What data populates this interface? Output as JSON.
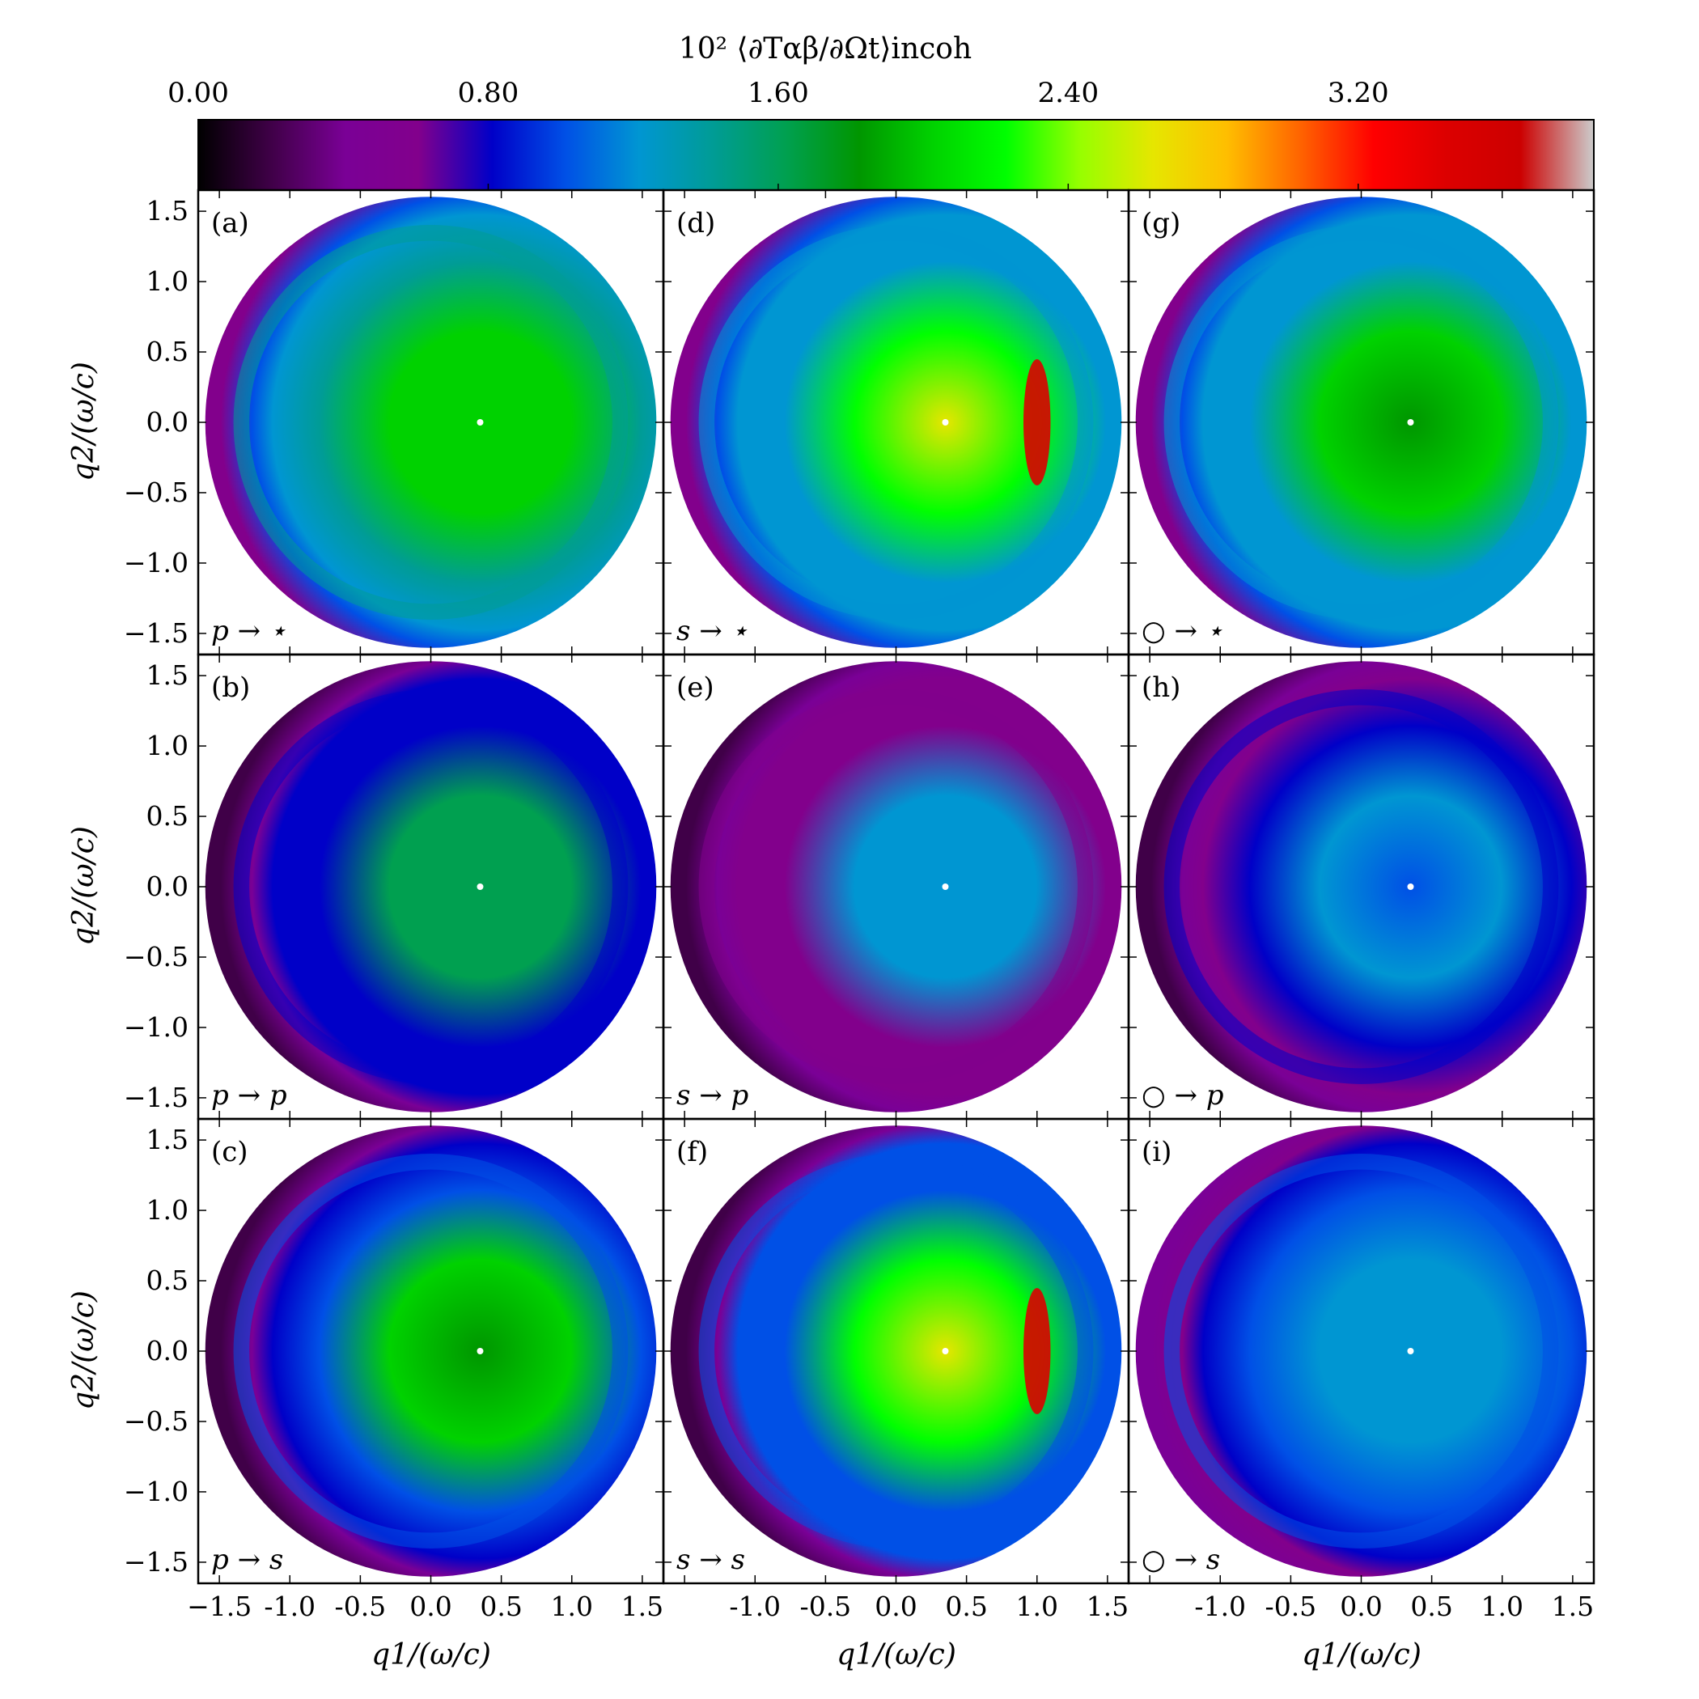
{
  "colorbar": {
    "title": "10² ⟨∂Tαβ/∂Ωt⟩incoh",
    "ticks": [
      "0.00",
      "0.80",
      "1.60",
      "2.40",
      "3.20"
    ],
    "range": [
      0.0,
      3.85
    ],
    "colormap": "nipy_spectral",
    "colormap_stops": [
      "#000000",
      "#400048",
      "#7a0096",
      "#82008c",
      "#0000c8",
      "#0050e6",
      "#0096d2",
      "#009c96",
      "#00a050",
      "#009600",
      "#00d200",
      "#00ff00",
      "#96ff00",
      "#e6e600",
      "#ffbe00",
      "#ff6400",
      "#ff0000",
      "#dc0000",
      "#cc0000",
      "#cccccc"
    ]
  },
  "axes": {
    "xlabel": "q1/(ω/c)",
    "ylabel": "q2/(ω/c)",
    "x_ticks_first": [
      "−1.5",
      "-1.0",
      "-0.5",
      "0.0",
      "0.5",
      "1.0",
      "1.5"
    ],
    "x_ticks_other": [
      "-1.0",
      "-0.5",
      "0.0",
      "0.5",
      "1.0",
      "1.5"
    ],
    "y_ticks": [
      "1.5",
      "1.0",
      "0.5",
      "0.0",
      "−0.5",
      "−1.0",
      "−1.5"
    ]
  },
  "chart_data": {
    "type": "heatmap",
    "description_grid": "3x3 panels of q-space intensity maps on a disk of radius 1.6",
    "xlim": [
      -1.65,
      1.65
    ],
    "ylim": [
      -1.65,
      1.65
    ],
    "specular_point": [
      0.35,
      0.0
    ],
    "panels": [
      {
        "id": "(a)",
        "mode": "p → ⋆",
        "peak": 2.5
      },
      {
        "id": "(b)",
        "mode": "p → p",
        "peak": 2.0
      },
      {
        "id": "(c)",
        "mode": "p → s",
        "peak": 2.3
      },
      {
        "id": "(d)",
        "mode": "s → ⋆",
        "peak": 3.4
      },
      {
        "id": "(e)",
        "mode": "s → p",
        "peak": 1.6
      },
      {
        "id": "(f)",
        "mode": "s → s",
        "peak": 3.4
      },
      {
        "id": "(g)",
        "mode": "○ → ⋆",
        "peak": 2.3
      },
      {
        "id": "(h)",
        "mode": "○ → p",
        "peak": 1.2
      },
      {
        "id": "(i)",
        "mode": "○ → s",
        "peak": 1.6
      }
    ]
  }
}
